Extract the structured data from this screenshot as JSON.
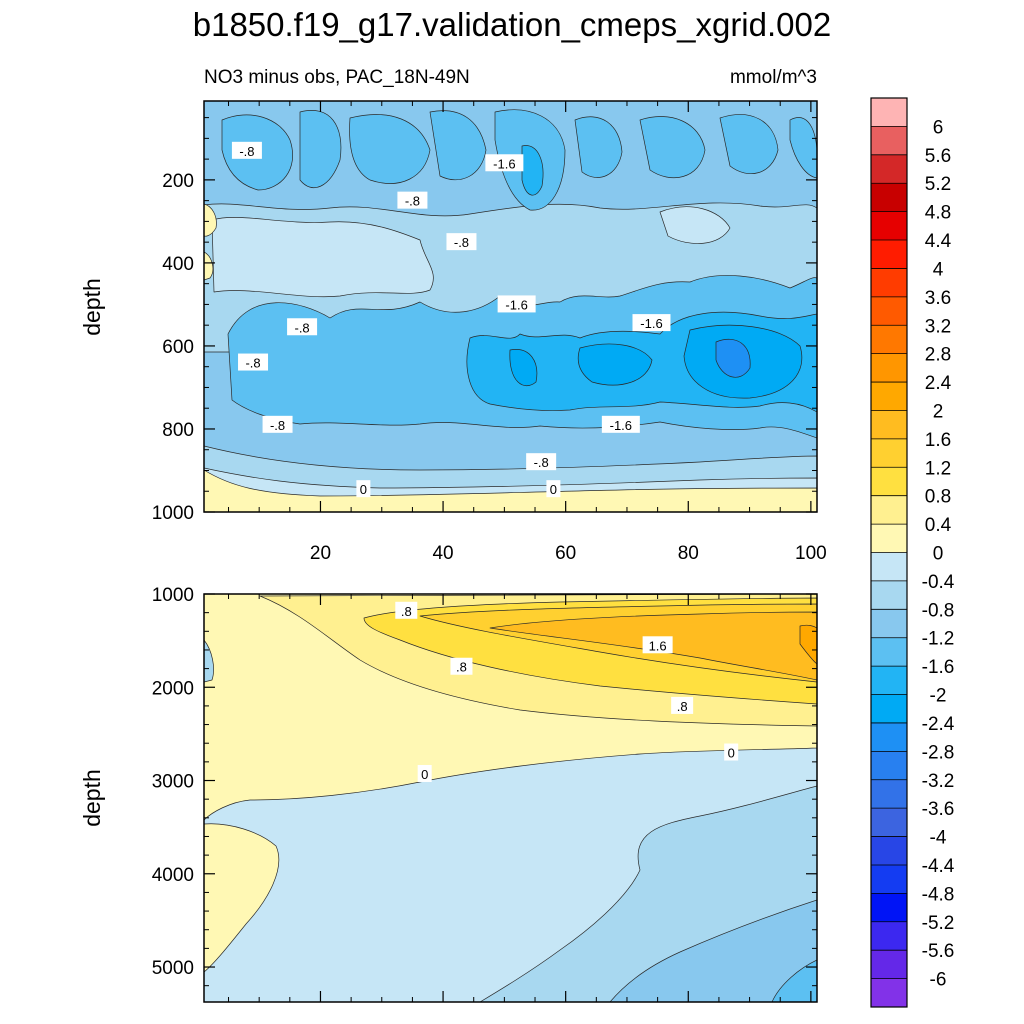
{
  "figure": {
    "title": "b1850.f19_g17.validation_cmeps_xgrid.002",
    "subtitle_left": "NO3 minus obs, PAC_18N-49N",
    "subtitle_right": "mmol/m^3"
  },
  "chart_data": [
    {
      "type": "heatmap",
      "name": "upper-panel",
      "xlim": [
        1,
        101
      ],
      "ylim": [
        1000,
        10
      ],
      "ylabel": "depth",
      "xticks": [
        20,
        40,
        60,
        80,
        100
      ],
      "yticks": [
        200,
        400,
        600,
        800,
        1000
      ],
      "contour_labels": [
        {
          "text": "-.8",
          "x": 8,
          "y": 130
        },
        {
          "text": "-1.6",
          "x": 50,
          "y": 160
        },
        {
          "text": "-.8",
          "x": 35,
          "y": 250
        },
        {
          "text": "-.8",
          "x": 43,
          "y": 350
        },
        {
          "text": "-1.6",
          "x": 52,
          "y": 500
        },
        {
          "text": "-1.6",
          "x": 74,
          "y": 545
        },
        {
          "text": "-.8",
          "x": 17,
          "y": 555
        },
        {
          "text": "-.8",
          "x": 9,
          "y": 640
        },
        {
          "text": "-.8",
          "x": 13,
          "y": 790
        },
        {
          "text": "-1.6",
          "x": 69,
          "y": 790
        },
        {
          "text": "-.8",
          "x": 56,
          "y": 880
        },
        {
          "text": "0",
          "x": 27,
          "y": 945
        },
        {
          "text": "0",
          "x": 58,
          "y": 945
        }
      ]
    },
    {
      "type": "heatmap",
      "name": "lower-panel",
      "xlim": [
        1,
        101
      ],
      "ylim": [
        5375,
        1000
      ],
      "ylabel": "depth",
      "yticks": [
        1000,
        2000,
        3000,
        4000,
        5000
      ],
      "contour_labels": [
        {
          "text": ".8",
          "x": 34,
          "y": 1180
        },
        {
          "text": "1.6",
          "x": 75,
          "y": 1550
        },
        {
          "text": ".8",
          "x": 43,
          "y": 1780
        },
        {
          "text": ".8",
          "x": 79,
          "y": 2200
        },
        {
          "text": "0",
          "x": 87,
          "y": 2700
        },
        {
          "text": "0",
          "x": 37,
          "y": 2930
        }
      ]
    }
  ],
  "colorbar": {
    "labels": [
      "6",
      "5.6",
      "5.2",
      "4.8",
      "4.4",
      "4",
      "3.6",
      "3.2",
      "2.8",
      "2.4",
      "2",
      "1.6",
      "1.2",
      "0.8",
      "0.4",
      "0",
      "-0.4",
      "-0.8",
      "-1.2",
      "-1.6",
      "-2",
      "-2.4",
      "-2.8",
      "-3.2",
      "-3.6",
      "-4",
      "-4.4",
      "-4.8",
      "-5.2",
      "-5.6",
      "-6"
    ],
    "colors": [
      "#feb4b4",
      "#e86060",
      "#d42828",
      "#c80000",
      "#e60000",
      "#ff1c00",
      "#ff3c00",
      "#ff5a00",
      "#ff7800",
      "#ff9600",
      "#ffa800",
      "#ffbc20",
      "#ffd030",
      "#ffe040",
      "#fff090",
      "#fff8b4",
      "#c6e6f6",
      "#a8d8f0",
      "#88c8ee",
      "#5cc0f2",
      "#22b4f4",
      "#00aaf4",
      "#1e90f4",
      "#2880f0",
      "#3272e8",
      "#3c64e0",
      "#2846e6",
      "#143cf2",
      "#0014f6",
      "#3c28f0",
      "#6428e8",
      "#8232e8"
    ]
  }
}
